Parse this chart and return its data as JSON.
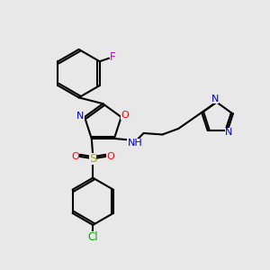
{
  "background_color": "#e8e8e8",
  "bond_color": "#000000",
  "atom_colors": {
    "F": "#cc00cc",
    "O": "#ff0000",
    "N": "#0000cc",
    "S": "#aaaa00",
    "Cl": "#00aa00",
    "H": "#000000",
    "C": "#000000"
  },
  "figsize": [
    3.0,
    3.0
  ],
  "dpi": 100
}
